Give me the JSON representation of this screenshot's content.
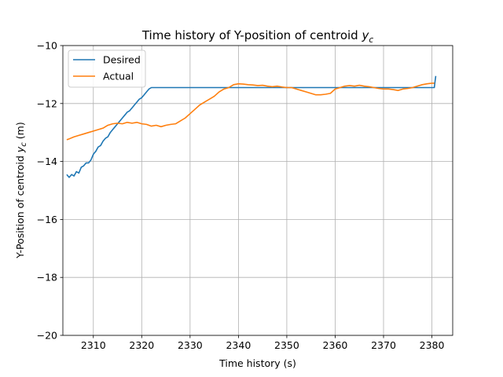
{
  "chart_data": {
    "type": "line",
    "title_main": "Time history of Y-position of centroid ",
    "title_sym": "y",
    "title_sub": "c",
    "xlabel": "Time history (s)",
    "ylabel_main": "Y-Position of centroid ",
    "ylabel_sym": "y",
    "ylabel_sub": "c",
    "ylabel_unit": " (m)",
    "xlim": [
      2303.7,
      2384.3
    ],
    "ylim": [
      -20,
      -10
    ],
    "xticks": [
      2310,
      2320,
      2330,
      2340,
      2350,
      2360,
      2370,
      2380
    ],
    "yticks": [
      -20,
      -18,
      -16,
      -14,
      -12,
      -10
    ],
    "grid": true,
    "legend_position": "top-left",
    "series": [
      {
        "name": "Desired",
        "color": "#1f77b4",
        "x": [
          2304.5,
          2305.0,
          2305.5,
          2306.0,
          2306.5,
          2307.0,
          2307.5,
          2308.0,
          2308.5,
          2309.0,
          2309.5,
          2310.0,
          2310.5,
          2311.0,
          2311.5,
          2312.0,
          2312.5,
          2313.0,
          2313.5,
          2314.0,
          2314.5,
          2315.0,
          2315.5,
          2316.0,
          2316.5,
          2317.0,
          2317.5,
          2318.0,
          2318.5,
          2319.0,
          2319.5,
          2320.0,
          2320.5,
          2321.0,
          2321.5,
          2322.0,
          2322.5,
          2330.0,
          2340.0,
          2350.0,
          2360.0,
          2370.0,
          2380.5,
          2380.6,
          2380.8
        ],
        "y": [
          -14.45,
          -14.55,
          -14.45,
          -14.5,
          -14.35,
          -14.4,
          -14.2,
          -14.15,
          -14.05,
          -14.05,
          -13.95,
          -13.75,
          -13.65,
          -13.5,
          -13.45,
          -13.3,
          -13.2,
          -13.15,
          -13.0,
          -12.9,
          -12.8,
          -12.7,
          -12.6,
          -12.5,
          -12.4,
          -12.3,
          -12.25,
          -12.15,
          -12.05,
          -11.95,
          -11.85,
          -11.8,
          -11.7,
          -11.6,
          -11.5,
          -11.45,
          -11.45,
          -11.45,
          -11.45,
          -11.45,
          -11.45,
          -11.45,
          -11.45,
          -11.3,
          -11.05
        ]
      },
      {
        "name": "Actual",
        "color": "#ff7f0e",
        "x": [
          2304.5,
          2305.0,
          2306.0,
          2307.0,
          2308.0,
          2309.0,
          2310.0,
          2311.0,
          2312.0,
          2313.0,
          2314.0,
          2315.0,
          2316.0,
          2317.0,
          2318.0,
          2319.0,
          2320.0,
          2321.0,
          2322.0,
          2323.0,
          2324.0,
          2325.0,
          2326.0,
          2327.0,
          2328.0,
          2329.0,
          2330.0,
          2331.0,
          2332.0,
          2333.0,
          2334.0,
          2335.0,
          2336.0,
          2337.0,
          2338.0,
          2339.0,
          2340.0,
          2341.0,
          2342.0,
          2343.0,
          2344.0,
          2345.0,
          2346.0,
          2347.0,
          2348.0,
          2349.0,
          2350.0,
          2351.0,
          2352.0,
          2353.0,
          2354.0,
          2355.0,
          2356.0,
          2357.0,
          2358.0,
          2359.0,
          2360.0,
          2361.0,
          2362.0,
          2363.0,
          2364.0,
          2365.0,
          2366.0,
          2367.0,
          2368.0,
          2369.0,
          2370.0,
          2371.0,
          2372.0,
          2373.0,
          2374.0,
          2375.0,
          2376.0,
          2377.0,
          2378.0,
          2379.0,
          2380.0,
          2380.5
        ],
        "y": [
          -13.25,
          -13.22,
          -13.15,
          -13.1,
          -13.05,
          -13.0,
          -12.95,
          -12.9,
          -12.85,
          -12.75,
          -12.7,
          -12.68,
          -12.7,
          -12.65,
          -12.68,
          -12.65,
          -12.7,
          -12.72,
          -12.78,
          -12.75,
          -12.8,
          -12.75,
          -12.72,
          -12.7,
          -12.6,
          -12.5,
          -12.35,
          -12.2,
          -12.05,
          -11.95,
          -11.85,
          -11.75,
          -11.6,
          -11.5,
          -11.45,
          -11.35,
          -11.32,
          -11.33,
          -11.35,
          -11.36,
          -11.38,
          -11.37,
          -11.4,
          -11.42,
          -11.4,
          -11.43,
          -11.45,
          -11.45,
          -11.5,
          -11.55,
          -11.6,
          -11.65,
          -11.7,
          -11.7,
          -11.68,
          -11.65,
          -11.5,
          -11.45,
          -11.4,
          -11.38,
          -11.4,
          -11.37,
          -11.4,
          -11.42,
          -11.45,
          -11.48,
          -11.5,
          -11.5,
          -11.52,
          -11.55,
          -11.5,
          -11.48,
          -11.45,
          -11.4,
          -11.35,
          -11.32,
          -11.3,
          -11.3
        ]
      }
    ]
  }
}
